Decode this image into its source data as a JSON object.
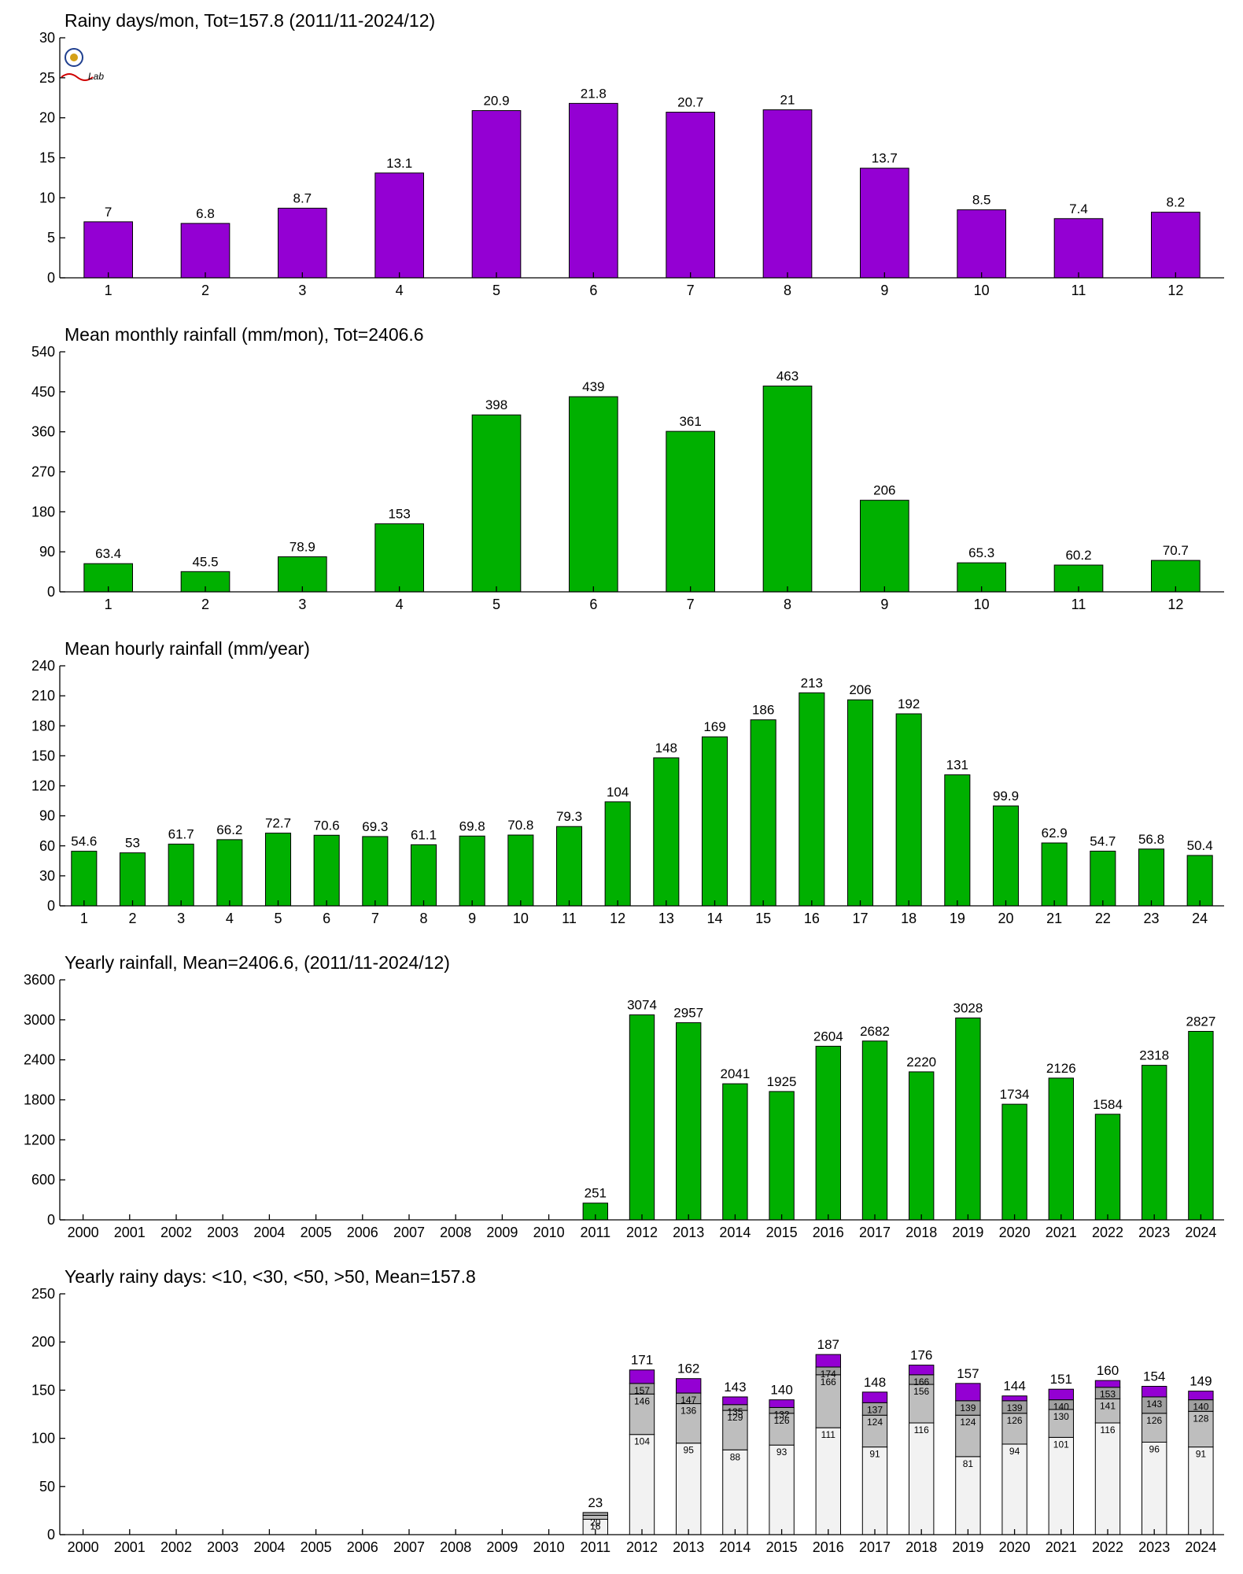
{
  "colors": {
    "purple": "#9400d3",
    "green": "#00b000",
    "stack": [
      "#f2f2f2",
      "#bebebe",
      "#a0a0a0",
      "#9400d3"
    ]
  },
  "logo": {
    "name": "weather-lab-logo",
    "text": "Lab"
  },
  "chart_data": [
    {
      "type": "bar",
      "title": "Rainy days/mon, Tot=157.8 (2011/11-2024/12)",
      "categories": [
        "1",
        "2",
        "3",
        "4",
        "5",
        "6",
        "7",
        "8",
        "9",
        "10",
        "11",
        "12"
      ],
      "values": [
        7,
        6.8,
        8.7,
        13.1,
        20.9,
        21.8,
        20.7,
        21,
        13.7,
        8.5,
        7.4,
        8.2
      ],
      "labels": [
        "7",
        "6.8",
        "8.7",
        "13.1",
        "20.9",
        "21.8",
        "20.7",
        "21",
        "13.7",
        "8.5",
        "7.4",
        "8.2"
      ],
      "ylim": [
        0,
        30
      ],
      "yticks": [
        "0",
        "5",
        "10",
        "15",
        "20",
        "25",
        "30"
      ],
      "color": "#9400d3"
    },
    {
      "type": "bar",
      "title": "Mean monthly rainfall (mm/mon), Tot=2406.6",
      "categories": [
        "1",
        "2",
        "3",
        "4",
        "5",
        "6",
        "7",
        "8",
        "9",
        "10",
        "11",
        "12"
      ],
      "values": [
        63.4,
        45.5,
        78.9,
        153,
        398,
        439,
        361,
        463,
        206,
        65.3,
        60.2,
        70.7
      ],
      "labels": [
        "63.4",
        "45.5",
        "78.9",
        "153",
        "398",
        "439",
        "361",
        "463",
        "206",
        "65.3",
        "60.2",
        "70.7"
      ],
      "ylim": [
        0,
        540
      ],
      "yticks": [
        "0",
        "90",
        "180",
        "270",
        "360",
        "450",
        "540"
      ],
      "color": "#00b000"
    },
    {
      "type": "bar",
      "title": "Mean hourly rainfall (mm/year)",
      "categories": [
        "1",
        "2",
        "3",
        "4",
        "5",
        "6",
        "7",
        "8",
        "9",
        "10",
        "11",
        "12",
        "13",
        "14",
        "15",
        "16",
        "17",
        "18",
        "19",
        "20",
        "21",
        "22",
        "23",
        "24"
      ],
      "values": [
        54.6,
        53,
        61.7,
        66.2,
        72.7,
        70.6,
        69.3,
        61.1,
        69.8,
        70.8,
        79.3,
        104,
        148,
        169,
        186,
        213,
        206,
        192,
        131,
        99.9,
        62.9,
        54.7,
        56.8,
        50.4
      ],
      "labels": [
        "54.6",
        "53",
        "61.7",
        "66.2",
        "72.7",
        "70.6",
        "69.3",
        "61.1",
        "69.8",
        "70.8",
        "79.3",
        "104",
        "148",
        "169",
        "186",
        "213",
        "206",
        "192",
        "131",
        "99.9",
        "62.9",
        "54.7",
        "56.8",
        "50.4"
      ],
      "ylim": [
        0,
        240
      ],
      "yticks": [
        "0",
        "30",
        "60",
        "90",
        "120",
        "150",
        "180",
        "210",
        "240"
      ],
      "color": "#00b000"
    },
    {
      "type": "bar",
      "title": "Yearly rainfall, Mean=2406.6, (2011/11-2024/12)",
      "categories": [
        "2000",
        "2001",
        "2002",
        "2003",
        "2004",
        "2005",
        "2006",
        "2007",
        "2008",
        "2009",
        "2010",
        "2011",
        "2012",
        "2013",
        "2014",
        "2015",
        "2016",
        "2017",
        "2018",
        "2019",
        "2020",
        "2021",
        "2022",
        "2023",
        "2024"
      ],
      "values": [
        null,
        null,
        null,
        null,
        null,
        null,
        null,
        null,
        null,
        null,
        null,
        251,
        3074,
        2957,
        2041,
        1925,
        2604,
        2682,
        2220,
        3028,
        1734,
        2126,
        1584,
        2318,
        2827
      ],
      "labels": [
        "",
        "",
        "",
        "",
        "",
        "",
        "",
        "",
        "",
        "",
        "",
        "251",
        "3074",
        "2957",
        "2041",
        "1925",
        "2604",
        "2682",
        "2220",
        "3028",
        "1734",
        "2126",
        "1584",
        "2318",
        "2827"
      ],
      "ylim": [
        0,
        3600
      ],
      "yticks": [
        "0",
        "600",
        "1200",
        "1800",
        "2400",
        "3000",
        "3600"
      ],
      "color": "#00b000"
    },
    {
      "type": "bar",
      "stacked": true,
      "title": "Yearly rainy days: <10, <30, <50, >50, Mean=157.8",
      "categories": [
        "2000",
        "2001",
        "2002",
        "2003",
        "2004",
        "2005",
        "2006",
        "2007",
        "2008",
        "2009",
        "2010",
        "2011",
        "2012",
        "2013",
        "2014",
        "2015",
        "2016",
        "2017",
        "2018",
        "2019",
        "2020",
        "2021",
        "2022",
        "2023",
        "2024"
      ],
      "cumulative": [
        null,
        null,
        null,
        null,
        null,
        null,
        null,
        null,
        null,
        null,
        null,
        [
          16,
          20,
          23,
          23
        ],
        [
          104,
          146,
          157,
          171
        ],
        [
          95,
          136,
          147,
          162
        ],
        [
          88,
          129,
          135,
          143
        ],
        [
          93,
          126,
          132,
          140
        ],
        [
          111,
          166,
          174,
          187
        ],
        [
          91,
          124,
          137,
          148
        ],
        [
          116,
          156,
          166,
          176
        ],
        [
          81,
          124,
          139,
          157
        ],
        [
          94,
          126,
          139,
          144
        ],
        [
          101,
          130,
          140,
          151
        ],
        [
          116,
          141,
          153,
          160
        ],
        [
          96,
          126,
          143,
          154
        ],
        [
          91,
          128,
          140,
          149
        ]
      ],
      "stack_labels": [
        null,
        null,
        null,
        null,
        null,
        null,
        null,
        null,
        null,
        null,
        null,
        [
          "16",
          "20",
          ""
        ],
        [
          "104",
          "146",
          "157"
        ],
        [
          "95",
          "136",
          "147"
        ],
        [
          "88",
          "129",
          "135"
        ],
        [
          "93",
          "126",
          "132"
        ],
        [
          "111",
          "166",
          "174"
        ],
        [
          "91",
          "124",
          "137"
        ],
        [
          "116",
          "156",
          "166"
        ],
        [
          "81",
          "124",
          "139"
        ],
        [
          "94",
          "126",
          "139"
        ],
        [
          "101",
          "130",
          "140"
        ],
        [
          "116",
          "141",
          "153"
        ],
        [
          "96",
          "126",
          "143"
        ],
        [
          "91",
          "128",
          "140"
        ]
      ],
      "totals": [
        "",
        "",
        "",
        "",
        "",
        "",
        "",
        "",
        "",
        "",
        "",
        "23",
        "171",
        "162",
        "143",
        "140",
        "187",
        "148",
        "176",
        "157",
        "144",
        "151",
        "160",
        "154",
        "149"
      ],
      "ylim": [
        0,
        250
      ],
      "yticks": [
        "0",
        "50",
        "100",
        "150",
        "200",
        "250"
      ],
      "colors": [
        "#f2f2f2",
        "#bebebe",
        "#a0a0a0",
        "#9400d3"
      ]
    }
  ]
}
